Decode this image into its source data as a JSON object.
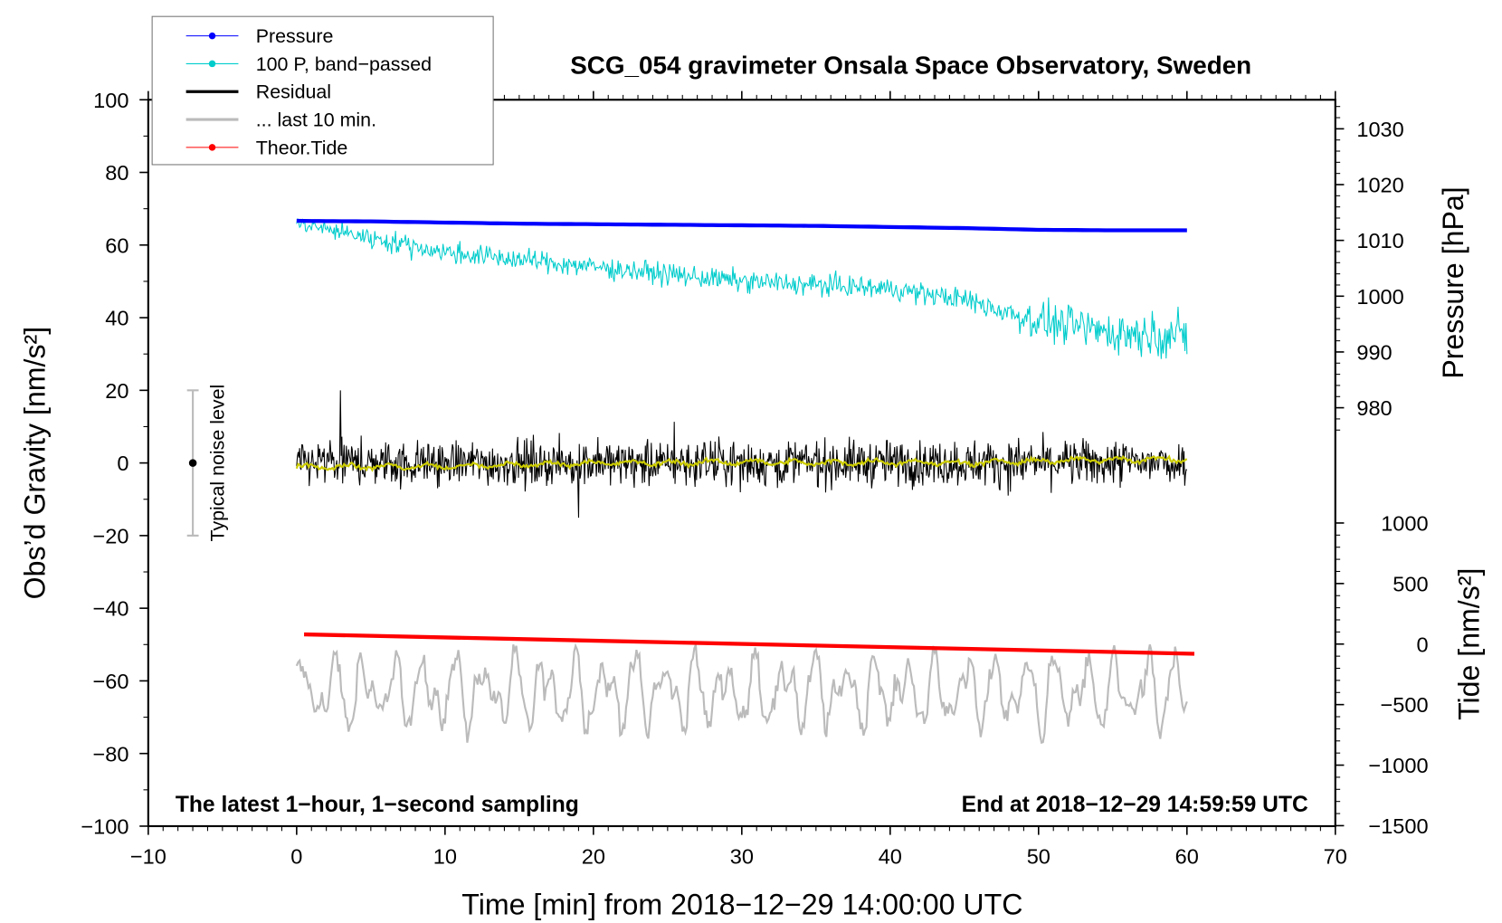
{
  "chart_data": {
    "type": "line",
    "title": "SCG_054 gravimeter Onsala Space Observatory, Sweden",
    "xlabel": "Time [min] from 2018−12−29 14:00:00 UTC",
    "ylabel_left": "Obs’d Gravity [nm/s²]",
    "ylabel_right_top": "Pressure [hPa]",
    "ylabel_right_bottom": "Tide [nm/s²]",
    "xlim": [
      -10,
      70
    ],
    "ylim_left": [
      -100,
      100
    ],
    "pressure_axis_ticks": [
      "1030",
      "1020",
      "1010",
      "1000",
      "990",
      "980"
    ],
    "tide_axis_ticks": [
      "1000",
      "500",
      "0",
      "−500",
      "−1000",
      "−1500"
    ],
    "tide_axis_range": [
      -1500,
      1000
    ],
    "x_ticks": [
      "−10",
      "0",
      "10",
      "20",
      "30",
      "40",
      "50",
      "60",
      "70"
    ],
    "y_ticks_left": [
      "100",
      "80",
      "60",
      "40",
      "20",
      "0",
      "−20",
      "−40",
      "−60",
      "−80",
      "−100"
    ],
    "legend_position": "top-left",
    "legend": [
      {
        "label": "Pressure",
        "color": "#0000ff",
        "marker": true
      },
      {
        "label": "100 P, band−passed",
        "color": "#00cccc",
        "marker": true
      },
      {
        "label": "Residual",
        "color": "#000000",
        "marker": false
      },
      {
        "label": "... last 10 min.",
        "color": "#bbbbbb",
        "marker": false
      },
      {
        "label": "Theor.Tide",
        "color": "#ff0000",
        "marker": true
      }
    ],
    "annotations": {
      "left_note": "The latest 1−hour, 1−second sampling",
      "right_note": "End at 2018−12−29 14:59:59 UTC",
      "noise_label": "Typical noise level",
      "noise_bar": {
        "x": -7,
        "low": -20,
        "high": 20,
        "center": 0
      }
    },
    "series": [
      {
        "name": "Pressure",
        "units": "hPa",
        "color": "#0000ff",
        "x": [
          0,
          5,
          10,
          15,
          20,
          25,
          30,
          35,
          40,
          45,
          50,
          55,
          60
        ],
        "values": [
          1013.5,
          1013.4,
          1013.2,
          1013.0,
          1012.9,
          1012.8,
          1012.7,
          1012.6,
          1012.4,
          1012.2,
          1011.9,
          1011.8,
          1011.8
        ]
      },
      {
        "name": "100 P, band-passed",
        "units": "nm/s2",
        "color": "#00cccc",
        "x": [
          0,
          5,
          10,
          15,
          20,
          25,
          30,
          35,
          40,
          45,
          50,
          55,
          60
        ],
        "values": [
          66,
          62,
          58,
          56,
          54,
          52,
          50,
          49,
          48,
          45,
          39,
          36,
          35
        ],
        "noise_amplitude": [
          2,
          3,
          3,
          3,
          3,
          3,
          3,
          3,
          3,
          3,
          5,
          6,
          6
        ]
      },
      {
        "name": "Residual",
        "units": "nm/s2",
        "color": "#000000",
        "x": [
          0,
          10,
          20,
          30,
          40,
          50,
          60
        ],
        "values": [
          0,
          0,
          0,
          0,
          0,
          0,
          0
        ],
        "noise_amplitude": 7
      },
      {
        "name": "Residual smoothed",
        "units": "nm/s2",
        "color": "#cccc00",
        "x": [
          0,
          5,
          10,
          15,
          20,
          25,
          30,
          35,
          40,
          45,
          50,
          55,
          60
        ],
        "values": [
          -1,
          -1,
          -1,
          -0.5,
          0,
          0,
          0.3,
          0,
          0.3,
          0,
          0.5,
          1,
          1
        ]
      },
      {
        "name": "... last 10 min.",
        "units": "nm/s2",
        "color": "#bbbbbb",
        "x": [
          0,
          60
        ],
        "mean": -63,
        "range": [
          -77,
          -50
        ]
      },
      {
        "name": "Theor.Tide",
        "units": "nm/s2 (right axis)",
        "color": "#ff0000",
        "x": [
          0.5,
          60.5
        ],
        "values": [
          80,
          -80
        ]
      }
    ]
  }
}
